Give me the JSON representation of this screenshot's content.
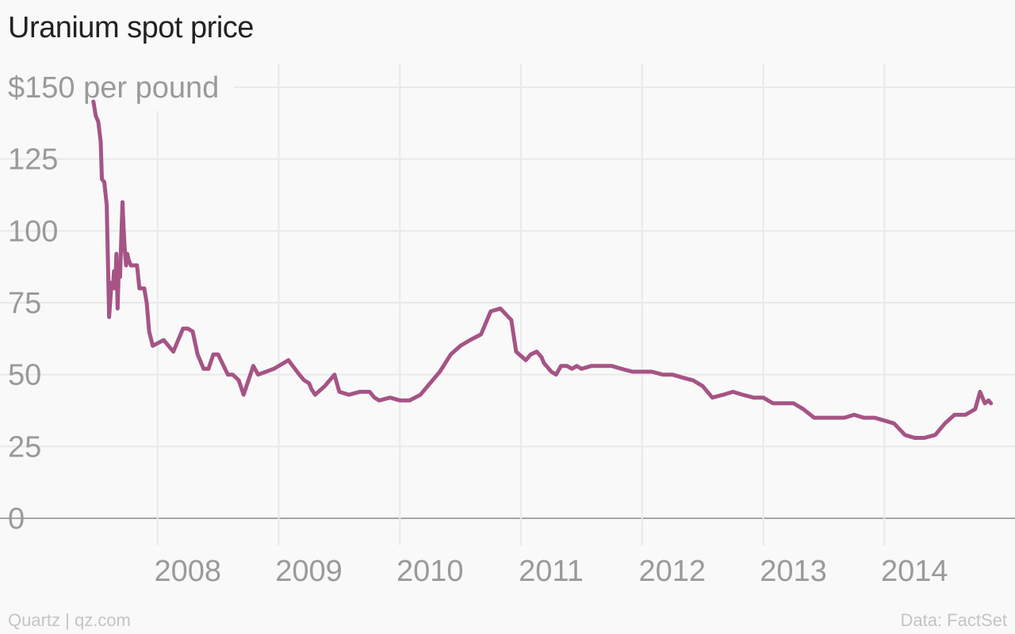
{
  "title": "Uranium spot price",
  "footer": {
    "credit": "Quartz | qz.com",
    "source": "Data: FactSet"
  },
  "colors": {
    "line": "#a55485",
    "grid": "#e9e9e9",
    "baseline": "#8a8a8a",
    "tick": "#9a9a9a",
    "background": "#f9f9f9"
  },
  "chart_data": {
    "type": "line",
    "title": "Uranium spot price",
    "xlabel": "",
    "ylabel": "",
    "x_tick_labels": [
      "2008",
      "2009",
      "2010",
      "2011",
      "2012",
      "2013",
      "2014"
    ],
    "y_tick_labels": [
      "$150 per pound",
      "125",
      "100",
      "75",
      "50",
      "25",
      "0"
    ],
    "y_ticks": [
      150,
      125,
      100,
      75,
      50,
      25,
      0
    ],
    "xlim": [
      2007.0,
      2015.0
    ],
    "ylim": [
      0,
      150
    ],
    "grid": true,
    "legend": "none",
    "series": [
      {
        "name": "",
        "x": [
          2007.47,
          2007.49,
          2007.51,
          2007.53,
          2007.54,
          2007.56,
          2007.58,
          2007.6,
          2007.62,
          2007.63,
          2007.64,
          2007.65,
          2007.66,
          2007.67,
          2007.68,
          2007.69,
          2007.7,
          2007.71,
          2007.72,
          2007.73,
          2007.74,
          2007.75,
          2007.76,
          2007.78,
          2007.8,
          2007.81,
          2007.83,
          2007.85,
          2007.87,
          2007.89,
          2007.91,
          2007.93,
          2007.96,
          2008.05,
          2008.13,
          2008.21,
          2008.25,
          2008.29,
          2008.33,
          2008.38,
          2008.42,
          2008.46,
          2008.5,
          2008.58,
          2008.62,
          2008.67,
          2008.71,
          2008.75,
          2008.79,
          2008.83,
          2008.96,
          2009.08,
          2009.17,
          2009.21,
          2009.25,
          2009.27,
          2009.3,
          2009.38,
          2009.46,
          2009.5,
          2009.58,
          2009.67,
          2009.75,
          2009.79,
          2009.83,
          2009.92,
          2010.0,
          2010.08,
          2010.17,
          2010.25,
          2010.33,
          2010.42,
          2010.5,
          2010.58,
          2010.67,
          2010.75,
          2010.83,
          2010.92,
          2010.96,
          2011.04,
          2011.08,
          2011.13,
          2011.17,
          2011.19,
          2011.21,
          2011.25,
          2011.29,
          2011.33,
          2011.38,
          2011.42,
          2011.46,
          2011.5,
          2011.58,
          2011.67,
          2011.75,
          2011.83,
          2011.92,
          2012.0,
          2012.08,
          2012.17,
          2012.25,
          2012.33,
          2012.42,
          2012.5,
          2012.58,
          2012.67,
          2012.75,
          2012.83,
          2012.92,
          2013.0,
          2013.08,
          2013.17,
          2013.25,
          2013.33,
          2013.42,
          2013.5,
          2013.58,
          2013.67,
          2013.75,
          2013.83,
          2013.92,
          2014.0,
          2014.08,
          2014.17,
          2014.25,
          2014.33,
          2014.42,
          2014.5,
          2014.58,
          2014.67,
          2014.75,
          2014.79,
          2014.83,
          2014.86,
          2014.88
        ],
        "values": [
          145,
          140,
          138,
          131,
          118,
          117,
          109,
          70,
          82,
          80,
          86,
          80,
          92,
          73,
          88,
          84,
          97,
          110,
          100,
          93,
          88,
          92,
          90,
          88,
          88,
          88,
          88,
          80,
          80,
          80,
          75,
          65,
          60,
          62,
          58,
          66,
          66,
          65,
          57,
          52,
          52,
          57,
          57,
          50,
          50,
          48,
          43,
          48,
          53,
          50,
          52,
          55,
          50,
          48,
          47,
          45,
          43,
          46,
          50,
          44,
          43,
          44,
          44,
          42,
          41,
          42,
          41,
          41,
          43,
          47,
          51,
          57,
          60,
          62,
          64,
          72,
          73,
          69,
          58,
          55,
          57,
          58,
          56,
          54,
          53,
          51,
          50,
          53,
          53,
          52,
          53,
          52,
          53,
          53,
          53,
          52,
          51,
          51,
          51,
          50,
          50,
          49,
          48,
          46,
          42,
          43,
          44,
          43,
          42,
          42,
          40,
          40,
          40,
          38,
          35,
          35,
          35,
          35,
          36,
          35,
          35,
          34,
          33,
          29,
          28,
          28,
          29,
          33,
          36,
          36,
          38,
          44,
          40,
          41,
          40
        ]
      }
    ]
  }
}
